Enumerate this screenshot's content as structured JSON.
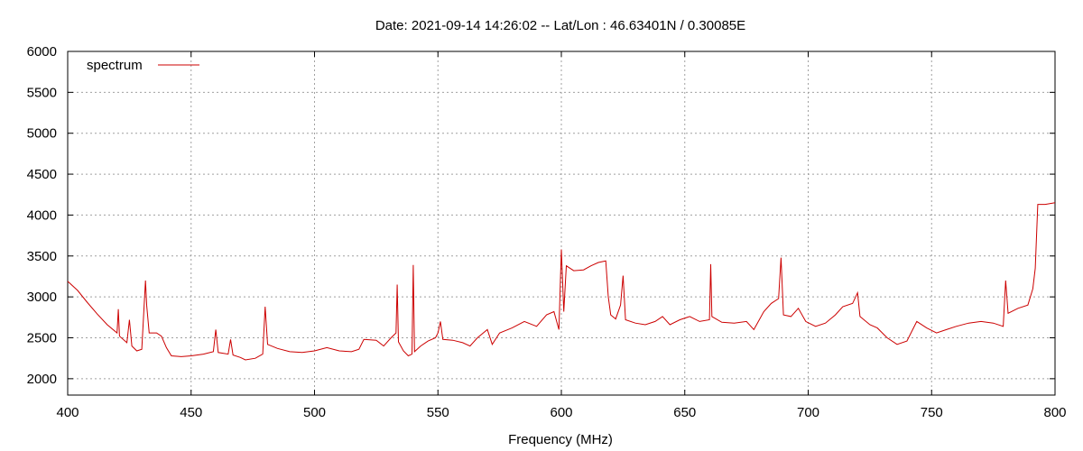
{
  "chart_data": {
    "type": "line",
    "title": "Date: 2021-09-14 14:26:02  --  Lat/Lon : 46.63401N / 0.30085E",
    "xlabel": "Frequency (MHz)",
    "ylabel": "",
    "xlim": [
      400,
      800
    ],
    "ylim": [
      1800,
      6000
    ],
    "x_ticks": [
      400,
      450,
      500,
      550,
      600,
      650,
      700,
      750,
      800
    ],
    "y_ticks": [
      2000,
      2500,
      3000,
      3500,
      4000,
      4500,
      5000,
      5500,
      6000
    ],
    "grid": true,
    "legend_position": "top-left",
    "series": [
      {
        "name": "spectrum",
        "color": "#cc0000",
        "points": [
          [
            400,
            3190
          ],
          [
            404,
            3080
          ],
          [
            408,
            2930
          ],
          [
            412,
            2790
          ],
          [
            416,
            2660
          ],
          [
            420,
            2560
          ],
          [
            420.5,
            2850
          ],
          [
            421,
            2520
          ],
          [
            424,
            2440
          ],
          [
            425,
            2720
          ],
          [
            426,
            2400
          ],
          [
            428,
            2340
          ],
          [
            430,
            2360
          ],
          [
            431.5,
            3200
          ],
          [
            432,
            2900
          ],
          [
            433,
            2560
          ],
          [
            436,
            2560
          ],
          [
            438,
            2520
          ],
          [
            440,
            2380
          ],
          [
            442,
            2280
          ],
          [
            446,
            2270
          ],
          [
            450,
            2280
          ],
          [
            455,
            2300
          ],
          [
            459,
            2330
          ],
          [
            460,
            2600
          ],
          [
            461,
            2320
          ],
          [
            465,
            2300
          ],
          [
            466,
            2480
          ],
          [
            467,
            2290
          ],
          [
            470,
            2260
          ],
          [
            472,
            2230
          ],
          [
            476,
            2250
          ],
          [
            479,
            2300
          ],
          [
            480,
            2880
          ],
          [
            481,
            2420
          ],
          [
            485,
            2370
          ],
          [
            490,
            2330
          ],
          [
            495,
            2320
          ],
          [
            500,
            2340
          ],
          [
            505,
            2380
          ],
          [
            510,
            2340
          ],
          [
            515,
            2330
          ],
          [
            518,
            2360
          ],
          [
            520,
            2480
          ],
          [
            525,
            2470
          ],
          [
            528,
            2400
          ],
          [
            531,
            2500
          ],
          [
            533,
            2560
          ],
          [
            533.5,
            3150
          ],
          [
            534,
            2450
          ],
          [
            536,
            2340
          ],
          [
            538,
            2280
          ],
          [
            539.5,
            2300
          ],
          [
            540,
            3390
          ],
          [
            540.5,
            2330
          ],
          [
            543,
            2400
          ],
          [
            546,
            2460
          ],
          [
            549,
            2500
          ],
          [
            550,
            2560
          ],
          [
            551,
            2700
          ],
          [
            552,
            2480
          ],
          [
            556,
            2470
          ],
          [
            560,
            2440
          ],
          [
            563,
            2400
          ],
          [
            566,
            2500
          ],
          [
            570,
            2600
          ],
          [
            572,
            2420
          ],
          [
            575,
            2560
          ],
          [
            580,
            2620
          ],
          [
            585,
            2700
          ],
          [
            590,
            2640
          ],
          [
            594,
            2780
          ],
          [
            597,
            2820
          ],
          [
            599,
            2600
          ],
          [
            600,
            3580
          ],
          [
            601,
            2820
          ],
          [
            602,
            3380
          ],
          [
            605,
            3320
          ],
          [
            609,
            3330
          ],
          [
            612,
            3380
          ],
          [
            615,
            3420
          ],
          [
            618,
            3440
          ],
          [
            619,
            3000
          ],
          [
            620,
            2780
          ],
          [
            622,
            2730
          ],
          [
            624,
            2900
          ],
          [
            625,
            3260
          ],
          [
            626,
            2720
          ],
          [
            630,
            2680
          ],
          [
            634,
            2660
          ],
          [
            638,
            2700
          ],
          [
            641,
            2760
          ],
          [
            644,
            2660
          ],
          [
            648,
            2720
          ],
          [
            652,
            2760
          ],
          [
            656,
            2700
          ],
          [
            660,
            2720
          ],
          [
            660.5,
            3400
          ],
          [
            661,
            2760
          ],
          [
            665,
            2690
          ],
          [
            670,
            2680
          ],
          [
            675,
            2700
          ],
          [
            678,
            2600
          ],
          [
            682,
            2820
          ],
          [
            685,
            2920
          ],
          [
            688,
            2980
          ],
          [
            689,
            3480
          ],
          [
            690,
            2780
          ],
          [
            693,
            2760
          ],
          [
            696,
            2860
          ],
          [
            699,
            2700
          ],
          [
            703,
            2640
          ],
          [
            707,
            2680
          ],
          [
            711,
            2780
          ],
          [
            714,
            2880
          ],
          [
            718,
            2920
          ],
          [
            720,
            3050
          ],
          [
            721,
            2760
          ],
          [
            725,
            2660
          ],
          [
            728,
            2620
          ],
          [
            732,
            2500
          ],
          [
            736,
            2420
          ],
          [
            740,
            2460
          ],
          [
            744,
            2700
          ],
          [
            748,
            2620
          ],
          [
            752,
            2560
          ],
          [
            756,
            2600
          ],
          [
            760,
            2640
          ],
          [
            765,
            2680
          ],
          [
            770,
            2700
          ],
          [
            775,
            2680
          ],
          [
            779,
            2640
          ],
          [
            780,
            3200
          ],
          [
            781,
            2800
          ],
          [
            785,
            2860
          ],
          [
            789,
            2900
          ],
          [
            791,
            3100
          ],
          [
            792,
            3350
          ],
          [
            793,
            4130
          ],
          [
            796,
            4130
          ],
          [
            800,
            4150
          ]
        ]
      }
    ]
  }
}
